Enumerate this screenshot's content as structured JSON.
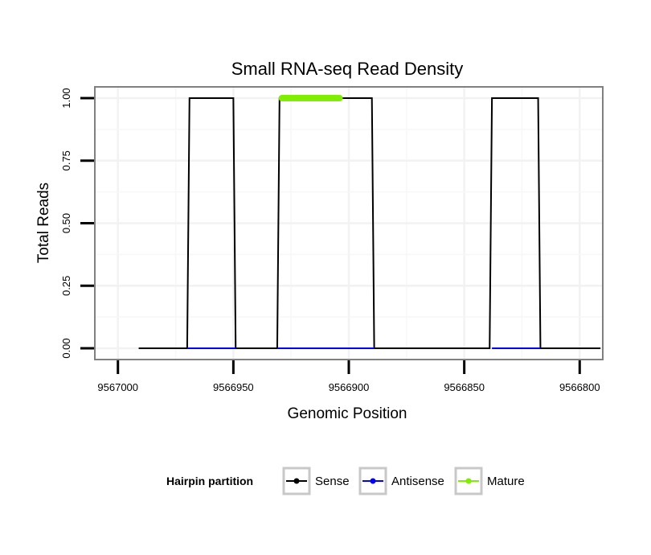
{
  "chart_data": {
    "type": "line",
    "title": "Small RNA-seq Read Density",
    "xlabel": "Genomic Position",
    "ylabel": "Total Reads",
    "xlim": [
      9567010,
      9566790
    ],
    "x_reversed": true,
    "ylim": [
      -0.045,
      1.045
    ],
    "x_ticks": [
      9567000,
      9566950,
      9566900,
      9566850,
      9566800
    ],
    "x_tick_labels": [
      "9567000",
      "9566950",
      "9566900",
      "9566850",
      "9566800"
    ],
    "y_ticks": [
      0,
      0.25,
      0.5,
      0.75,
      1.0
    ],
    "y_tick_labels": [
      "0.00",
      "0.25",
      "0.50",
      "0.75",
      "1.00"
    ],
    "grid": true,
    "legend": {
      "title": "Hairpin partition",
      "position": "bottom",
      "entries": [
        "Sense",
        "Antisense",
        "Mature"
      ]
    },
    "series": [
      {
        "name": "Sense",
        "color": "#000000",
        "x": [
          9566991,
          9566970,
          9566969,
          9566950,
          9566949,
          9566931,
          9566930,
          9566890,
          9566889,
          9566839,
          9566838,
          9566818,
          9566817,
          9566791
        ],
        "values": [
          0,
          0,
          1,
          1,
          0,
          0,
          1,
          1,
          0,
          0,
          1,
          1,
          0,
          0
        ]
      },
      {
        "name": "Antisense",
        "color": "#0000ff",
        "segments": [
          {
            "x": [
              9566970,
              9566949
            ],
            "values": [
              0,
              0
            ]
          },
          {
            "x": [
              9566931,
              9566889
            ],
            "values": [
              0,
              0
            ]
          },
          {
            "x": [
              9566838,
              9566817
            ],
            "values": [
              0,
              0
            ]
          }
        ]
      },
      {
        "name": "Mature",
        "color": "#80ee00",
        "x": [
          9566929,
          9566904
        ],
        "values": [
          1,
          1
        ]
      }
    ]
  }
}
